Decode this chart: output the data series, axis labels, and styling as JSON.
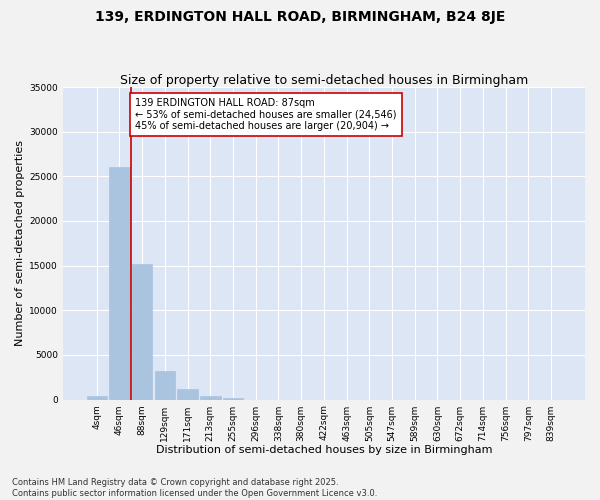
{
  "title1": "139, ERDINGTON HALL ROAD, BIRMINGHAM, B24 8JE",
  "title2": "Size of property relative to semi-detached houses in Birmingham",
  "xlabel": "Distribution of semi-detached houses by size in Birmingham",
  "ylabel": "Number of semi-detached properties",
  "categories": [
    "4sqm",
    "46sqm",
    "88sqm",
    "129sqm",
    "171sqm",
    "213sqm",
    "255sqm",
    "296sqm",
    "338sqm",
    "380sqm",
    "422sqm",
    "463sqm",
    "505sqm",
    "547sqm",
    "589sqm",
    "630sqm",
    "672sqm",
    "714sqm",
    "756sqm",
    "797sqm",
    "839sqm"
  ],
  "values": [
    400,
    26000,
    15200,
    3200,
    1200,
    450,
    150,
    0,
    0,
    0,
    0,
    0,
    0,
    0,
    0,
    0,
    0,
    0,
    0,
    0,
    0
  ],
  "bar_color": "#aac4e0",
  "bar_edgecolor": "#aac4e0",
  "vline_color": "#cc0000",
  "annotation_text": "139 ERDINGTON HALL ROAD: 87sqm\n← 53% of semi-detached houses are smaller (24,546)\n45% of semi-detached houses are larger (20,904) →",
  "annotation_box_color": "#ffffff",
  "annotation_box_edgecolor": "#cc0000",
  "ylim": [
    0,
    35000
  ],
  "yticks": [
    0,
    5000,
    10000,
    15000,
    20000,
    25000,
    30000,
    35000
  ],
  "plot_bg_color": "#dce6f5",
  "fig_bg_color": "#f2f2f2",
  "grid_color": "#ffffff",
  "footer_line1": "Contains HM Land Registry data © Crown copyright and database right 2025.",
  "footer_line2": "Contains public sector information licensed under the Open Government Licence v3.0.",
  "title_fontsize": 10,
  "subtitle_fontsize": 9,
  "axis_label_fontsize": 8,
  "tick_fontsize": 6.5,
  "annotation_fontsize": 7,
  "footer_fontsize": 6
}
